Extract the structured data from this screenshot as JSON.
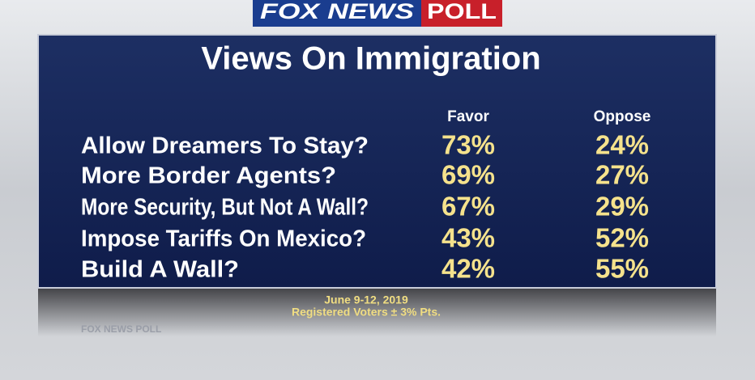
{
  "header": {
    "brand": "FOX NEWS",
    "badge": "POLL"
  },
  "title": "Views On Immigration",
  "table": {
    "columns": [
      "Favor",
      "Oppose"
    ],
    "rows": [
      {
        "label": "Allow Dreamers To Stay?",
        "values": [
          "73%",
          "24%"
        ]
      },
      {
        "label": "More Border Agents?",
        "values": [
          "69%",
          "27%"
        ]
      },
      {
        "label": "More Security, But Not A Wall?",
        "values": [
          "67%",
          "29%"
        ]
      },
      {
        "label": "Impose Tariffs On Mexico?",
        "values": [
          "43%",
          "52%"
        ]
      },
      {
        "label": "Build A Wall?",
        "values": [
          "42%",
          "55%"
        ]
      }
    ]
  },
  "footer": {
    "dates": "June 9-12, 2019",
    "note": "Registered Voters ± 3% Pts."
  },
  "watermark": "FOX NEWS POLL"
}
